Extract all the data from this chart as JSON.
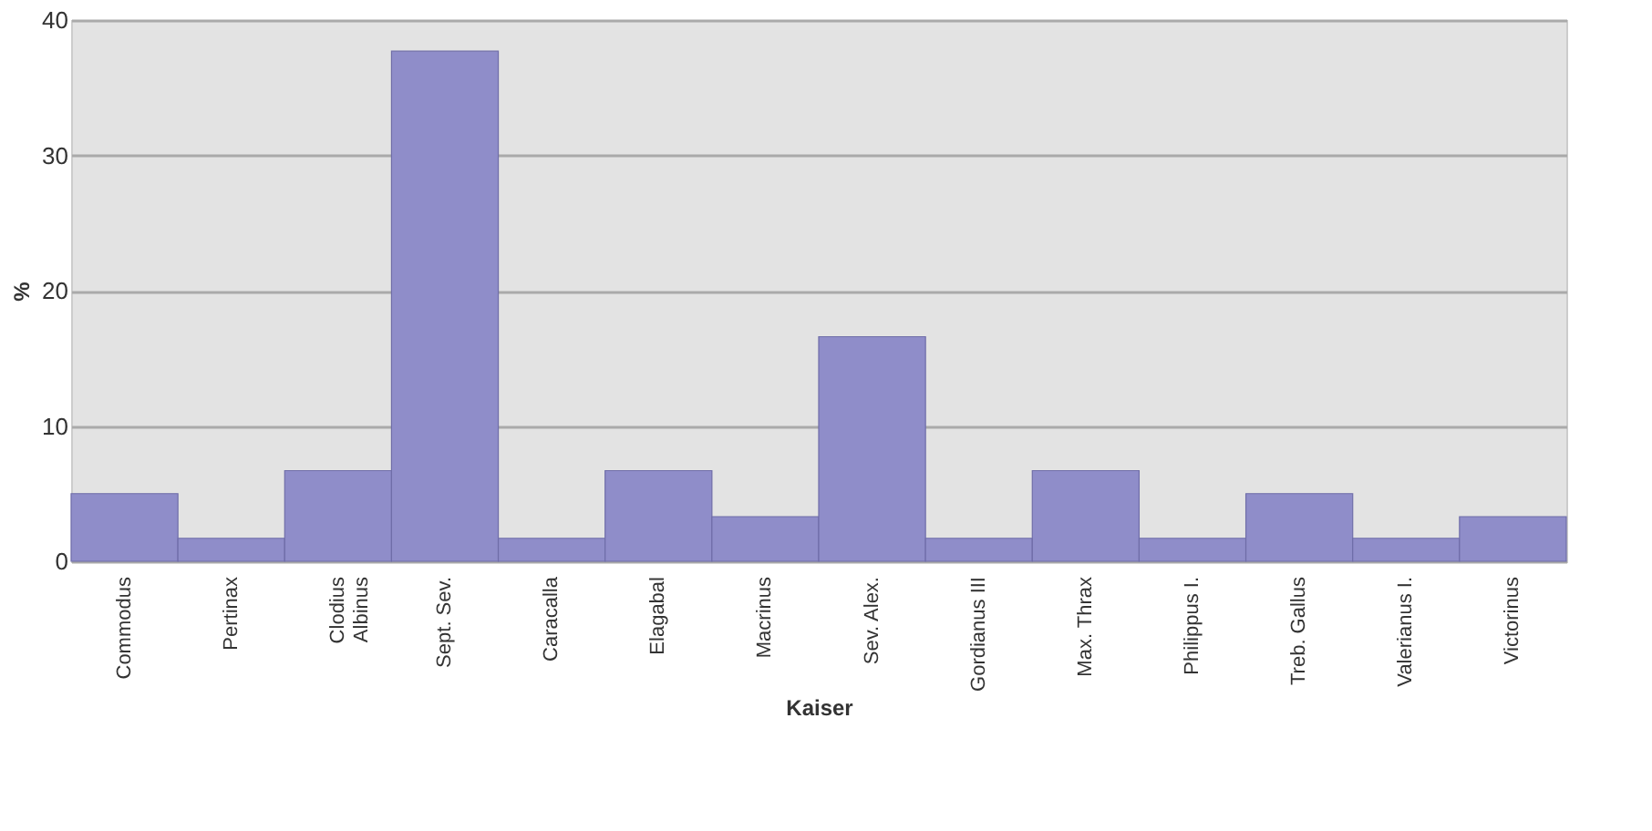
{
  "chart_data": {
    "type": "bar",
    "xlabel": "Kaiser",
    "ylabel": "%",
    "categories": [
      "Commodus",
      "Pertinax",
      "Clodius\nAlbinus",
      "Sept. Sev.",
      "Caracalla",
      "Elagabal",
      "Macrinus",
      "Sev. Alex.",
      "Gordianus III",
      "Max. Thrax",
      "Philippus I.",
      "Treb. Gallus",
      "Valerianus I.",
      "Victorinus"
    ],
    "values": [
      5.0,
      1.7,
      6.7,
      37.7,
      1.7,
      6.7,
      3.3,
      16.6,
      1.7,
      6.7,
      1.7,
      5.0,
      1.7,
      3.3
    ],
    "color": "#8f8dc9",
    "ylim": [
      0,
      40
    ],
    "yticks": [
      0,
      10,
      20,
      30,
      40
    ],
    "grid": "y"
  }
}
